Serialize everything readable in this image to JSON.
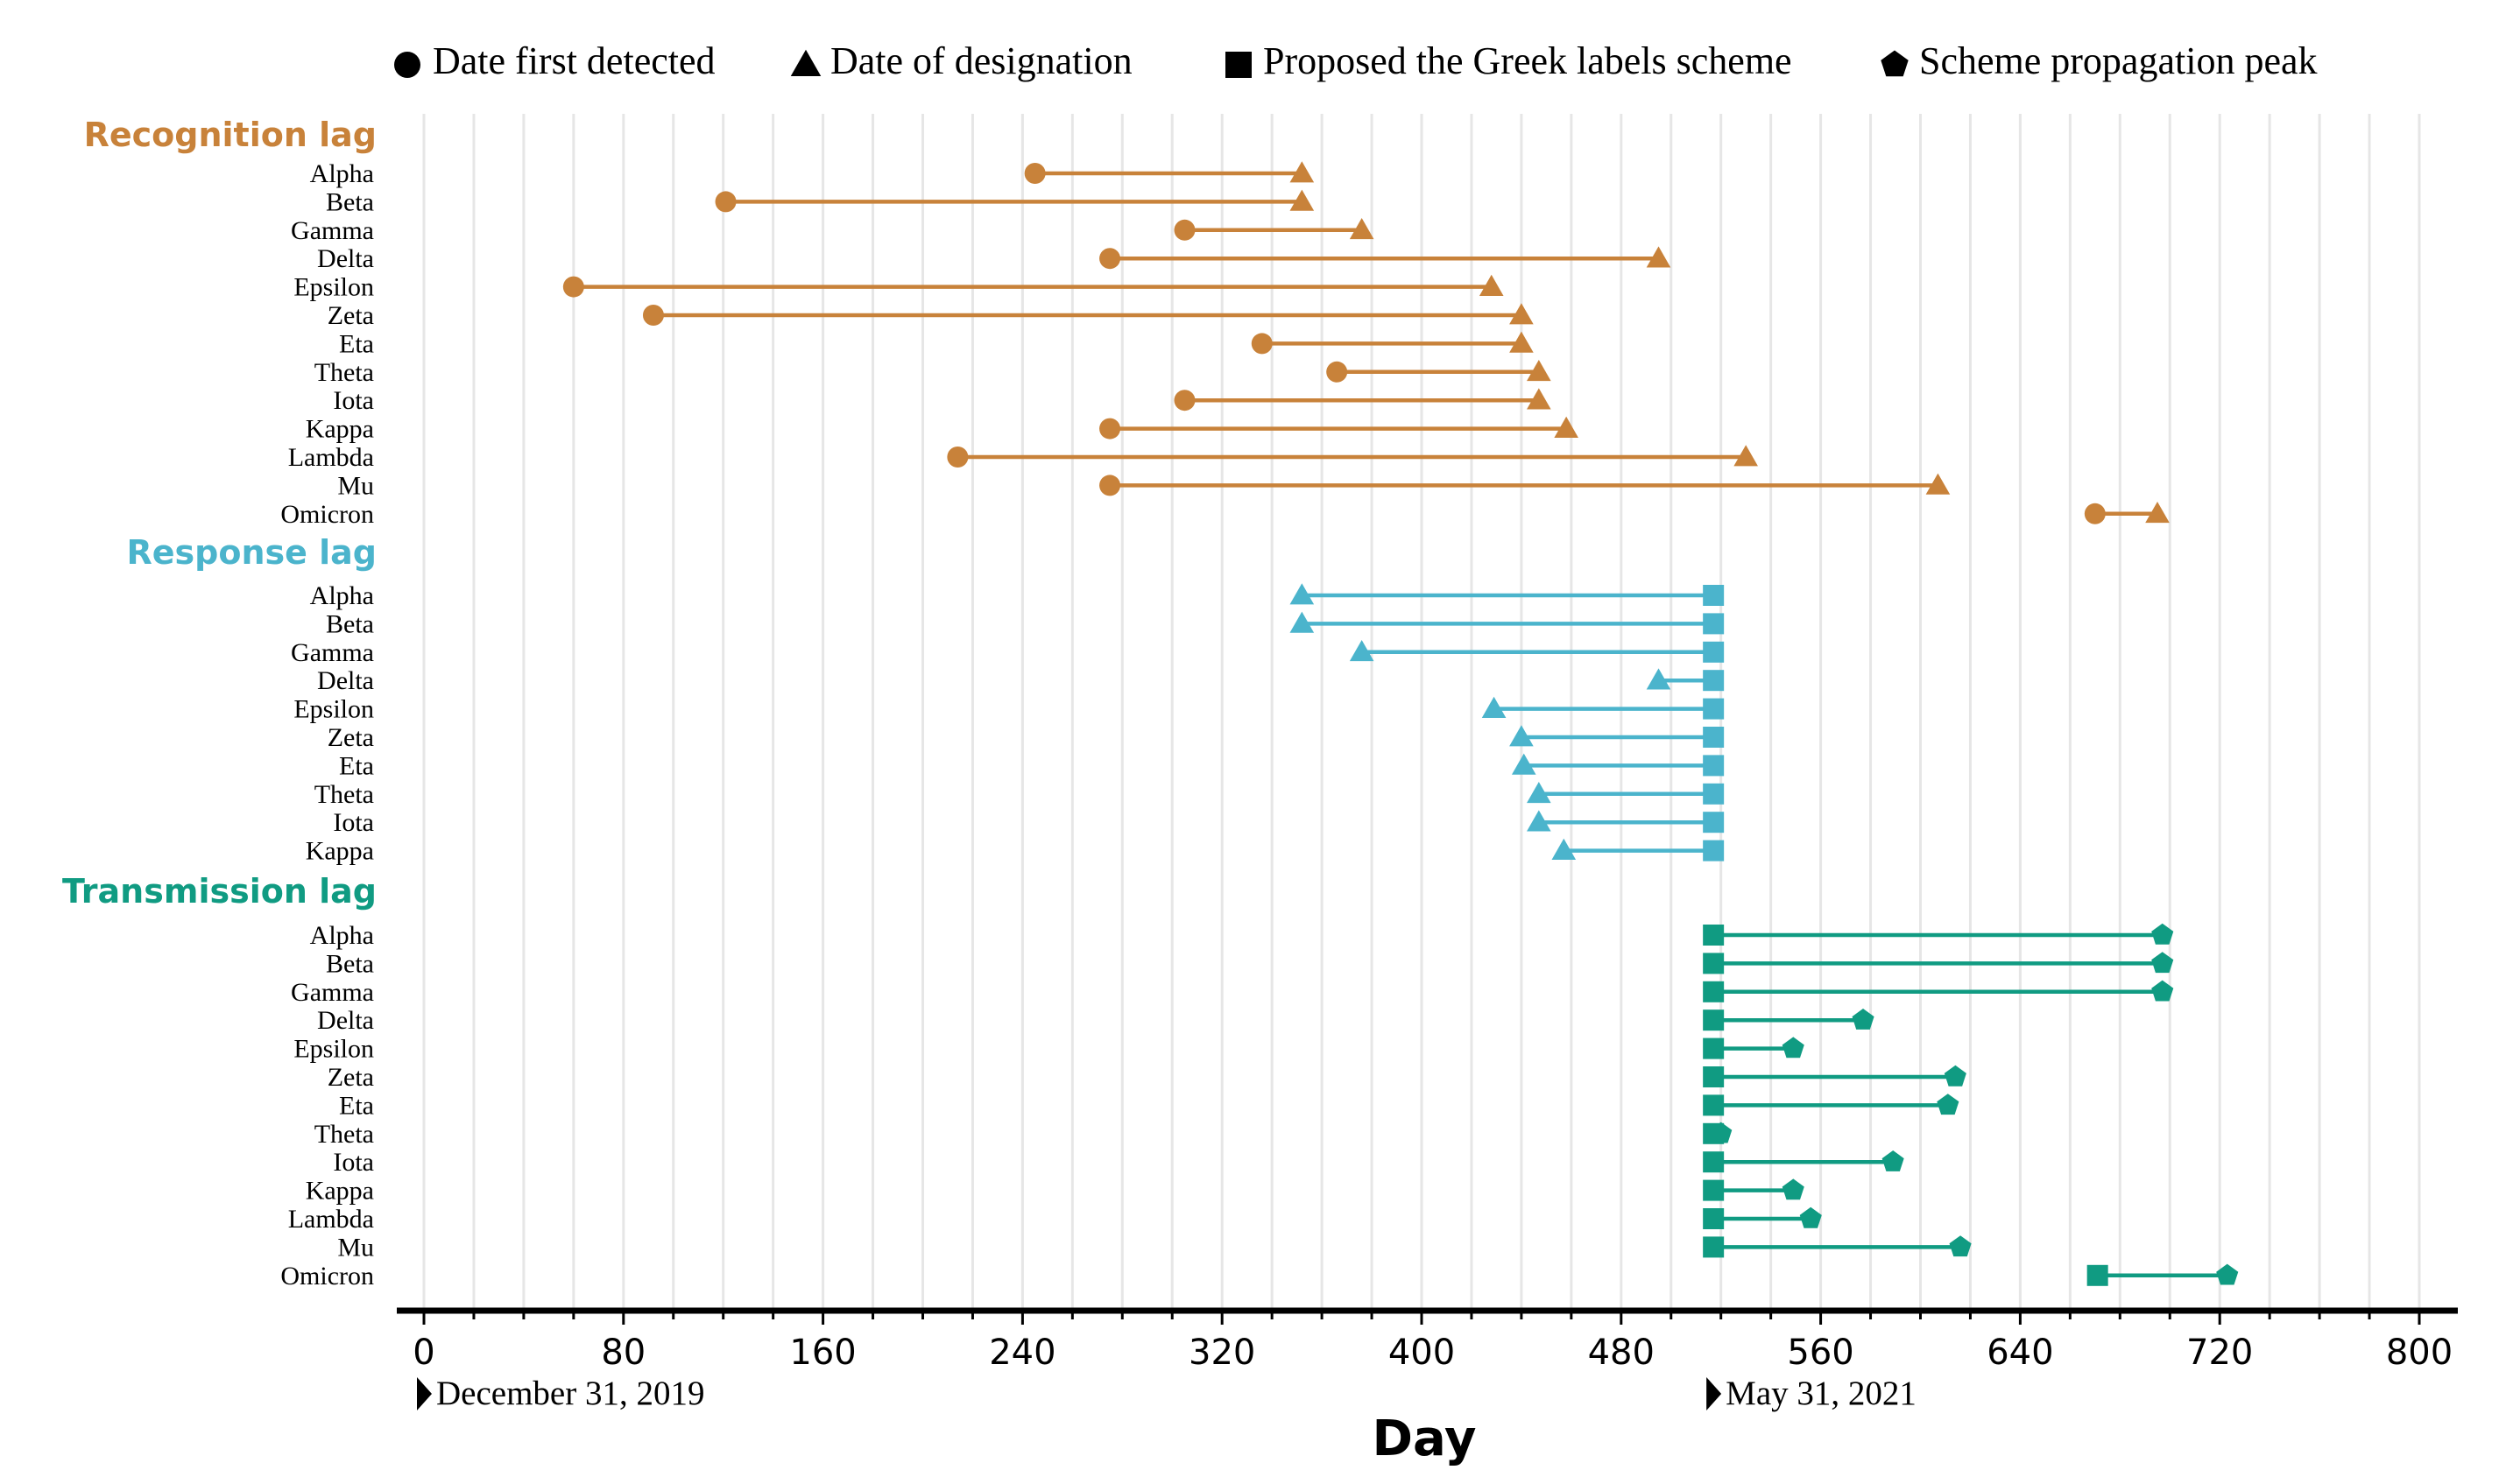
{
  "chart_data": {
    "type": "dumbbell",
    "xlabel": "Day",
    "xlim": [
      -10,
      816
    ],
    "xticks": [
      0,
      80,
      160,
      240,
      320,
      400,
      480,
      560,
      640,
      720,
      800
    ],
    "grid": true,
    "legend_position": "top",
    "legend": [
      {
        "marker": "circle",
        "label": "Date first detected"
      },
      {
        "marker": "triangle",
        "label": "Date of designation"
      },
      {
        "marker": "square",
        "label": "Proposed the Greek labels scheme"
      },
      {
        "marker": "pentagon",
        "label": "Scheme propagation peak"
      }
    ],
    "date_annotations": [
      {
        "day": 0,
        "label": "December 31, 2019"
      },
      {
        "day": 517,
        "label": "May 31, 2021"
      }
    ],
    "groups": [
      {
        "title": "Recognition lag",
        "color": "#C8823A",
        "start_marker": "circle",
        "end_marker": "triangle",
        "rows": [
          {
            "label": "Alpha",
            "start": 245,
            "end": 352
          },
          {
            "label": "Beta",
            "start": 121,
            "end": 352
          },
          {
            "label": "Gamma",
            "start": 305,
            "end": 376
          },
          {
            "label": "Delta",
            "start": 275,
            "end": 495
          },
          {
            "label": "Epsilon",
            "start": 60,
            "end": 428
          },
          {
            "label": "Zeta",
            "start": 92,
            "end": 440
          },
          {
            "label": "Eta",
            "start": 336,
            "end": 440
          },
          {
            "label": "Theta",
            "start": 366,
            "end": 447
          },
          {
            "label": "Iota",
            "start": 305,
            "end": 447
          },
          {
            "label": "Kappa",
            "start": 275,
            "end": 458
          },
          {
            "label": "Lambda",
            "start": 214,
            "end": 530
          },
          {
            "label": "Mu",
            "start": 275,
            "end": 607
          },
          {
            "label": "Omicron",
            "start": 670,
            "end": 695
          }
        ]
      },
      {
        "title": "Response lag",
        "color": "#4BB4CC",
        "start_marker": "triangle",
        "end_marker": "square",
        "rows": [
          {
            "label": "Alpha",
            "start": 352,
            "end": 517
          },
          {
            "label": "Beta",
            "start": 352,
            "end": 517
          },
          {
            "label": "Gamma",
            "start": 376,
            "end": 517
          },
          {
            "label": "Delta",
            "start": 495,
            "end": 517
          },
          {
            "label": "Epsilon",
            "start": 429,
            "end": 517
          },
          {
            "label": "Zeta",
            "start": 440,
            "end": 517
          },
          {
            "label": "Eta",
            "start": 441,
            "end": 517
          },
          {
            "label": "Theta",
            "start": 447,
            "end": 517
          },
          {
            "label": "Iota",
            "start": 447,
            "end": 517
          },
          {
            "label": "Kappa",
            "start": 457,
            "end": 517
          }
        ]
      },
      {
        "title": "Transmission lag",
        "color": "#109B82",
        "start_marker": "square",
        "end_marker": "pentagon",
        "rows": [
          {
            "label": "Alpha",
            "start": 517,
            "end": 697
          },
          {
            "label": "Beta",
            "start": 517,
            "end": 697
          },
          {
            "label": "Gamma",
            "start": 517,
            "end": 697
          },
          {
            "label": "Delta",
            "start": 517,
            "end": 577
          },
          {
            "label": "Epsilon",
            "start": 517,
            "end": 549
          },
          {
            "label": "Zeta",
            "start": 517,
            "end": 614
          },
          {
            "label": "Eta",
            "start": 517,
            "end": 611
          },
          {
            "label": "Theta",
            "start": 517,
            "end": 520
          },
          {
            "label": "Iota",
            "start": 517,
            "end": 589
          },
          {
            "label": "Kappa",
            "start": 517,
            "end": 549
          },
          {
            "label": "Lambda",
            "start": 517,
            "end": 556
          },
          {
            "label": "Mu",
            "start": 517,
            "end": 616
          },
          {
            "label": "Omicron",
            "start": 671,
            "end": 723
          }
        ]
      }
    ]
  }
}
